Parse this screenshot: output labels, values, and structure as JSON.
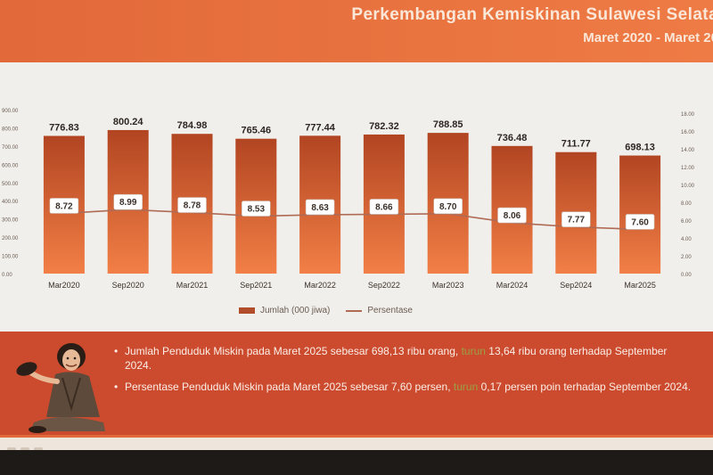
{
  "header": {
    "title": "Perkembangan Kemiskinan Sulawesi Selata",
    "subtitle": "Maret 2020 - Maret 20"
  },
  "colors": {
    "header_orange": "#e97440",
    "bar_top": "#b24522",
    "bar_bottom": "#f27f46",
    "panel_red": "#cc4b2f",
    "highlight_green": "#9aa045",
    "line": "#b06b55"
  },
  "chart_data": {
    "type": "bar",
    "categories": [
      "Mar2020",
      "Sep2020",
      "Mar2021",
      "Sep2021",
      "Mar2022",
      "Sep2022",
      "Mar2023",
      "Mar2024",
      "Sep2024",
      "Mar2025"
    ],
    "series": [
      {
        "name": "Jumlah (000 jiwa)",
        "type": "bar",
        "values": [
          776.83,
          800.24,
          784.98,
          765.46,
          777.44,
          782.32,
          788.85,
          736.48,
          711.77,
          698.13
        ],
        "labels": [
          "776.83",
          "800.24",
          "784.98",
          "765.46",
          "777.44",
          "782.32",
          "788.85",
          "736.48",
          "711.77",
          "698.13"
        ]
      },
      {
        "name": "Persentase",
        "type": "line",
        "values": [
          8.72,
          8.99,
          8.78,
          8.53,
          8.63,
          8.66,
          8.7,
          8.06,
          7.77,
          7.6
        ],
        "labels": [
          "8.72",
          "8.99",
          "8.78",
          "8.53",
          "8.63",
          "8.66",
          "8.70",
          "8.06",
          "7.77",
          "7.60"
        ]
      }
    ],
    "ylim_left": [
      0,
      900
    ],
    "ylim_right": [
      0,
      18
    ],
    "left_ticks": [
      "0.00",
      "100.00",
      "200.00",
      "300.00",
      "400.00",
      "500.00",
      "600.00",
      "700.00",
      "800.00",
      "900.00"
    ],
    "right_ticks": [
      "0.00",
      "2.00",
      "4.00",
      "6.00",
      "8.00",
      "10.00",
      "12.00",
      "14.00",
      "16.00",
      "18.00"
    ],
    "legend_position": "bottom",
    "grid": false
  },
  "legend": {
    "bar_label": "Jumlah (000 jiwa)",
    "line_label": "Persentase"
  },
  "bullets": [
    {
      "before": "Jumlah Penduduk Miskin pada Maret 2025 sebesar 698,13 ribu orang, ",
      "highlight": "turun",
      "after": " 13,64 ribu orang terhadap September 2024."
    },
    {
      "before": "Persentase Penduduk Miskin pada Maret 2025 sebesar 7,60 persen, ",
      "highlight": "turun",
      "after": " 0,17 persen poin terhadap September 2024."
    }
  ]
}
